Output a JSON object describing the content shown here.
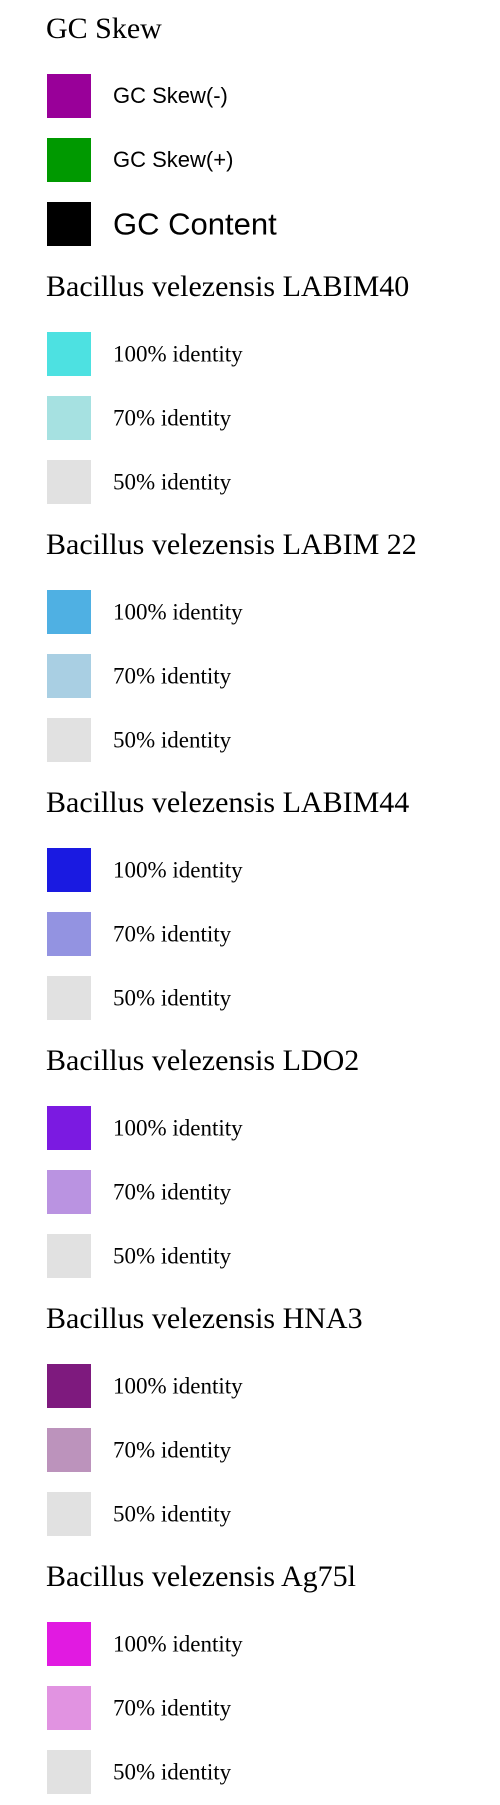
{
  "sections": [
    {
      "heading": "GC Skew",
      "entries": [
        {
          "label": "GC Skew(-)",
          "color": "#990099",
          "style": "sans"
        },
        {
          "label": "GC Skew(+)",
          "color": "#009900",
          "style": "sans"
        },
        {
          "label": "GC Content",
          "color": "#000000",
          "style": "sans-big"
        }
      ]
    },
    {
      "heading": "Bacillus velezensis LABIM40",
      "entries": [
        {
          "label": "100% identity",
          "color": "#4de1e1",
          "style": "serif"
        },
        {
          "label": "70% identity",
          "color": "#a6e1e1",
          "style": "serif"
        },
        {
          "label": "50% identity",
          "color": "#e1e1e1",
          "style": "serif"
        }
      ]
    },
    {
      "heading": "Bacillus velezensis LABIM 22",
      "entries": [
        {
          "label": "100% identity",
          "color": "#4fb0e3",
          "style": "serif"
        },
        {
          "label": "70% identity",
          "color": "#a9cfe3",
          "style": "serif"
        },
        {
          "label": "50% identity",
          "color": "#e1e1e1",
          "style": "serif"
        }
      ]
    },
    {
      "heading": "Bacillus velezensis LABIM44",
      "entries": [
        {
          "label": "100% identity",
          "color": "#1a1ae1",
          "style": "serif"
        },
        {
          "label": "70% identity",
          "color": "#9393e1",
          "style": "serif"
        },
        {
          "label": "50% identity",
          "color": "#e1e1e1",
          "style": "serif"
        }
      ]
    },
    {
      "heading": "Bacillus velezensis LDO2",
      "entries": [
        {
          "label": "100% identity",
          "color": "#7b1ae1",
          "style": "serif"
        },
        {
          "label": "70% identity",
          "color": "#ba93e1",
          "style": "serif"
        },
        {
          "label": "50% identity",
          "color": "#e1e1e1",
          "style": "serif"
        }
      ]
    },
    {
      "heading": "Bacillus velezensis HNA3",
      "entries": [
        {
          "label": "100% identity",
          "color": "#7e1a7e",
          "style": "serif"
        },
        {
          "label": "70% identity",
          "color": "#bc93bc",
          "style": "serif"
        },
        {
          "label": "50% identity",
          "color": "#e1e1e1",
          "style": "serif"
        }
      ]
    },
    {
      "heading": "Bacillus velezensis Ag75l",
      "entries": [
        {
          "label": "100% identity",
          "color": "#e11ae1",
          "style": "serif"
        },
        {
          "label": "70% identity",
          "color": "#e193e1",
          "style": "serif"
        },
        {
          "label": "50% identity",
          "color": "#e1e1e1",
          "style": "serif"
        }
      ]
    }
  ]
}
